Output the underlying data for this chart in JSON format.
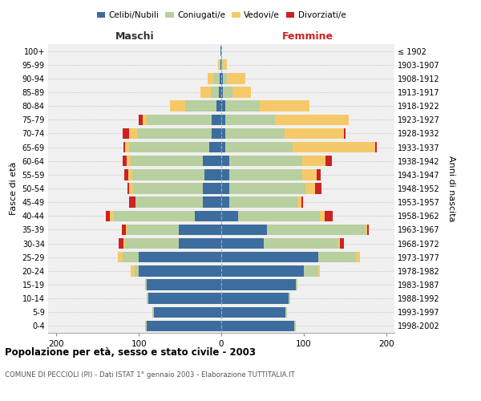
{
  "age_groups": [
    "0-4",
    "5-9",
    "10-14",
    "15-19",
    "20-24",
    "25-29",
    "30-34",
    "35-39",
    "40-44",
    "45-49",
    "50-54",
    "55-59",
    "60-64",
    "65-69",
    "70-74",
    "75-79",
    "80-84",
    "85-89",
    "90-94",
    "95-99",
    "100+"
  ],
  "birth_years": [
    "1998-2002",
    "1993-1997",
    "1988-1992",
    "1983-1987",
    "1978-1982",
    "1973-1977",
    "1968-1972",
    "1963-1967",
    "1958-1962",
    "1953-1957",
    "1948-1952",
    "1943-1947",
    "1938-1942",
    "1933-1937",
    "1928-1932",
    "1923-1927",
    "1918-1922",
    "1913-1917",
    "1908-1912",
    "1903-1907",
    "≤ 1902"
  ],
  "maschi": {
    "celibi": [
      90,
      82,
      88,
      90,
      100,
      100,
      52,
      52,
      32,
      22,
      22,
      20,
      22,
      15,
      12,
      12,
      6,
      3,
      2,
      1,
      1
    ],
    "coniugati": [
      2,
      2,
      2,
      2,
      5,
      20,
      65,
      62,
      98,
      82,
      85,
      88,
      88,
      97,
      90,
      78,
      38,
      10,
      7,
      1,
      0
    ],
    "vedovi": [
      0,
      0,
      0,
      0,
      5,
      5,
      2,
      2,
      5,
      0,
      5,
      5,
      5,
      5,
      10,
      5,
      18,
      12,
      8,
      2,
      0
    ],
    "divorziati": [
      0,
      0,
      0,
      0,
      0,
      0,
      5,
      5,
      5,
      8,
      2,
      5,
      5,
      2,
      8,
      5,
      0,
      0,
      0,
      0,
      0
    ]
  },
  "femmine": {
    "nubili": [
      88,
      78,
      82,
      90,
      100,
      118,
      52,
      55,
      20,
      10,
      10,
      10,
      10,
      5,
      5,
      5,
      5,
      2,
      2,
      0,
      0
    ],
    "coniugate": [
      2,
      2,
      2,
      2,
      18,
      45,
      90,
      120,
      100,
      82,
      92,
      88,
      88,
      82,
      72,
      60,
      42,
      12,
      5,
      2,
      0
    ],
    "vedove": [
      0,
      0,
      0,
      0,
      2,
      5,
      2,
      2,
      5,
      5,
      12,
      18,
      28,
      100,
      72,
      90,
      60,
      22,
      22,
      5,
      0
    ],
    "divorziate": [
      0,
      0,
      0,
      0,
      0,
      0,
      5,
      2,
      10,
      2,
      8,
      5,
      8,
      2,
      2,
      0,
      0,
      0,
      0,
      0,
      0
    ]
  },
  "colors": {
    "celibi": "#3d6d9e",
    "coniugati": "#b8cfa0",
    "vedovi": "#f5c96a",
    "divorziati": "#cc2222"
  },
  "xlim": 210,
  "bar_height": 0.78,
  "title": "Popolazione per età, sesso e stato civile - 2003",
  "subtitle": "COMUNE DI PECCIOLI (PI) - Dati ISTAT 1° gennaio 2003 - Elaborazione TUTTITALIA.IT",
  "ylabel_left": "Fasce di età",
  "ylabel_right": "Anni di nascita",
  "label_maschi": "Maschi",
  "label_femmine": "Femmine",
  "legend": [
    "Celibi/Nubili",
    "Coniugati/e",
    "Vedovi/e",
    "Divorziati/e"
  ],
  "bg_color": "#ffffff",
  "plot_bg": "#f0f0f0",
  "grid_color": "#cccccc"
}
